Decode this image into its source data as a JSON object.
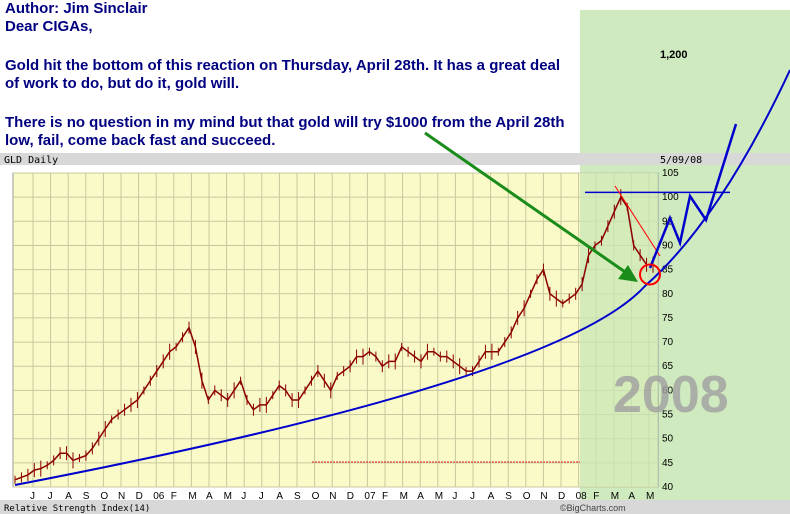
{
  "note": {
    "author": "Author: Jim Sinclair",
    "greeting": "Dear CIGAs,",
    "paragraph1": "Gold hit the bottom of this reaction on Thursday, April 28th. It has a great deal of work to do, but do it, gold will.",
    "paragraph2": "There is no question in my mind but that gold will try $1000 from the April 28th low, fail, come back fast and succeed."
  },
  "chart_data": {
    "type": "line",
    "title": "GLD Daily",
    "date_label": "5/09/08",
    "y_ticks": [
      40,
      45,
      50,
      55,
      60,
      65,
      70,
      75,
      80,
      85,
      90,
      95,
      100,
      105
    ],
    "upper_y_tick": "1,200",
    "ylim": [
      40,
      105
    ],
    "x_tick_labels": [
      "J",
      "J",
      "A",
      "S",
      "O",
      "N",
      "D",
      "06",
      "F",
      "M",
      "A",
      "M",
      "J",
      "J",
      "A",
      "S",
      "O",
      "N",
      "D",
      "07",
      "F",
      "M",
      "A",
      "M",
      "J",
      "J",
      "A",
      "S",
      "O",
      "N",
      "D",
      "08",
      "F",
      "M",
      "A",
      "M"
    ],
    "highlight_year": "2008",
    "lower_panel_label": "Relative Strength Index(14)",
    "watermark": "©BigCharts.com",
    "series": [
      {
        "values": [
          41.5,
          42,
          42.5,
          43.5,
          43.8,
          44.5,
          45.5,
          47,
          47,
          45.5,
          46,
          46.5,
          48,
          50,
          52,
          54,
          55,
          56,
          57,
          58,
          60,
          62,
          64,
          66,
          68,
          69,
          71,
          73,
          69,
          62,
          58,
          60,
          59,
          58,
          60,
          62,
          58,
          56,
          57,
          57,
          59,
          61,
          60,
          58,
          58,
          60,
          62,
          64,
          62,
          60,
          63,
          64,
          65,
          67,
          67,
          68,
          67,
          65,
          66,
          66,
          69,
          68,
          67,
          66,
          68,
          68,
          67,
          67,
          66,
          65,
          64,
          64,
          66,
          68,
          68,
          68,
          70,
          72,
          75,
          77,
          80,
          83,
          85,
          80,
          79,
          78,
          79,
          80,
          82,
          88,
          90,
          91,
          94,
          97,
          100,
          98,
          90,
          88,
          86,
          86
        ],
        "start": "2005-06",
        "end": "2008-05"
      }
    ],
    "trend_curve_label": "",
    "annotations": {
      "horizontal_level": 101,
      "low_marker": 84
    }
  },
  "colors": {
    "panel": "#fafac8",
    "highlight": "#c8e6b4",
    "curve": "#0000cc",
    "price": "#8b0000",
    "arrow": "#1a8c1a",
    "circle": "#ff0000",
    "text": "#000080"
  }
}
